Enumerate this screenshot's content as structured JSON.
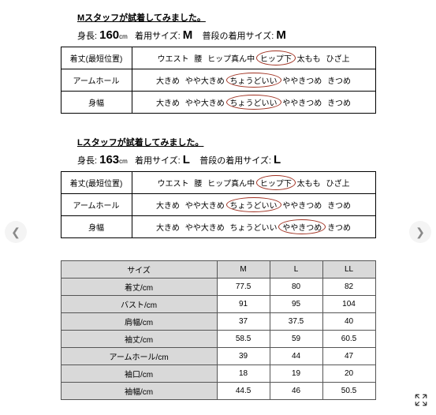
{
  "staffM": {
    "title": "Mスタッフが試着してみました。",
    "height_label": "身長:",
    "height_value": "160",
    "height_unit": "cm",
    "wear_label": "着用サイズ:",
    "wear_value": "M",
    "usual_label": "普段の着用サイズ:",
    "usual_value": "M",
    "rows": [
      {
        "label": "着丈(最短位置)",
        "options": [
          "ウエスト",
          "腰",
          "ヒップ真ん中",
          "ヒップ下",
          "太もも",
          "ひざ上"
        ],
        "circled": 3
      },
      {
        "label": "アームホール",
        "options": [
          "大きめ",
          "やや大きめ",
          "ちょうどいい",
          "ややきつめ",
          "きつめ"
        ],
        "circled": 2
      },
      {
        "label": "身幅",
        "options": [
          "大きめ",
          "やや大きめ",
          "ちょうどいい",
          "ややきつめ",
          "きつめ"
        ],
        "circled": 2
      }
    ]
  },
  "staffL": {
    "title": "Lスタッフが試着してみました。",
    "height_label": "身長:",
    "height_value": "163",
    "height_unit": "cm",
    "wear_label": "着用サイズ:",
    "wear_value": "L",
    "usual_label": "普段の着用サイズ:",
    "usual_value": "L",
    "rows": [
      {
        "label": "着丈(最短位置)",
        "options": [
          "ウエスト",
          "腰",
          "ヒップ真ん中",
          "ヒップ下",
          "太もも",
          "ひざ上"
        ],
        "circled": 3
      },
      {
        "label": "アームホール",
        "options": [
          "大きめ",
          "やや大きめ",
          "ちょうどいい",
          "ややきつめ",
          "きつめ"
        ],
        "circled": 2
      },
      {
        "label": "身幅",
        "options": [
          "大きめ",
          "やや大きめ",
          "ちょうどいい",
          "ややきつめ",
          "きつめ"
        ],
        "circled": 3
      }
    ]
  },
  "sizeTable": {
    "header": [
      "サイズ",
      "M",
      "L",
      "LL"
    ],
    "rows": [
      [
        "着丈/cm",
        "77.5",
        "80",
        "82"
      ],
      [
        "バスト/cm",
        "91",
        "95",
        "104"
      ],
      [
        "肩幅/cm",
        "37",
        "37.5",
        "40"
      ],
      [
        "袖丈/cm",
        "58.5",
        "59",
        "60.5"
      ],
      [
        "アームホール/cm",
        "39",
        "44",
        "47"
      ],
      [
        "袖口/cm",
        "18",
        "19",
        "20"
      ],
      [
        "袖幅/cm",
        "44.5",
        "46",
        "50.5"
      ]
    ]
  },
  "colors": {
    "ring": "#a03020",
    "grey": "#d9d9d9"
  }
}
